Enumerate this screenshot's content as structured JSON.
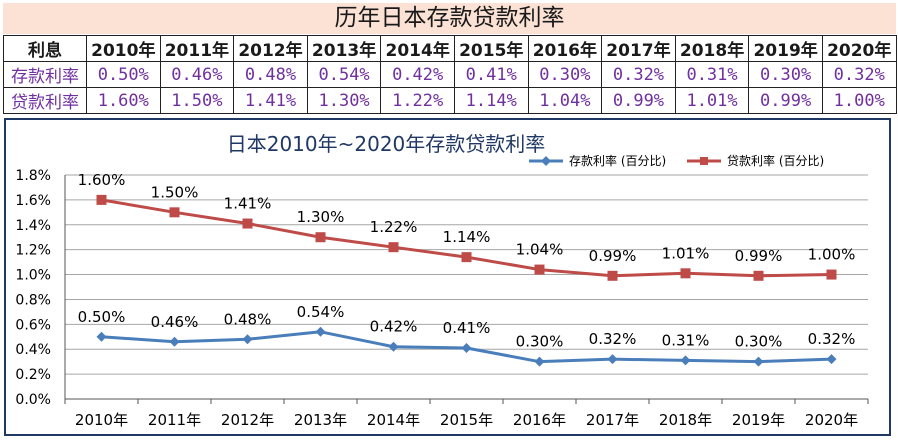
{
  "table": {
    "title": "历年日本存款贷款利率",
    "header_label": "利息",
    "years": [
      "2010年",
      "2011年",
      "2012年",
      "2013年",
      "2014年",
      "2015年",
      "2016年",
      "2017年",
      "2018年",
      "2019年",
      "2020年"
    ],
    "rows": [
      {
        "label": "存款利率",
        "values": [
          "0.50%",
          "0.46%",
          "0.48%",
          "0.54%",
          "0.42%",
          "0.41%",
          "0.30%",
          "0.32%",
          "0.31%",
          "0.30%",
          "0.32%"
        ]
      },
      {
        "label": "贷款利率",
        "values": [
          "1.60%",
          "1.50%",
          "1.41%",
          "1.30%",
          "1.22%",
          "1.14%",
          "1.04%",
          "0.99%",
          "1.01%",
          "0.99%",
          "1.00%"
        ]
      }
    ]
  },
  "chart_data": {
    "type": "line",
    "title": "日本2010年~2020年存款贷款利率",
    "categories": [
      "2010年",
      "2011年",
      "2012年",
      "2013年",
      "2014年",
      "2015年",
      "2016年",
      "2017年",
      "2018年",
      "2019年",
      "2020年"
    ],
    "series": [
      {
        "name": "存款利率 (百分比)",
        "color": "#4a7ebb",
        "marker": "diamond",
        "values": [
          0.5,
          0.46,
          0.48,
          0.54,
          0.42,
          0.41,
          0.3,
          0.32,
          0.31,
          0.3,
          0.32
        ],
        "labels": [
          "0.50%",
          "0.46%",
          "0.48%",
          "0.54%",
          "0.42%",
          "0.41%",
          "0.30%",
          "0.32%",
          "0.31%",
          "0.30%",
          "0.32%"
        ]
      },
      {
        "name": "贷款利率 (百分比)",
        "color": "#be4b48",
        "marker": "square",
        "values": [
          1.6,
          1.5,
          1.41,
          1.3,
          1.22,
          1.14,
          1.04,
          0.99,
          1.01,
          0.99,
          1.0
        ],
        "labels": [
          "1.60%",
          "1.50%",
          "1.41%",
          "1.30%",
          "1.22%",
          "1.14%",
          "1.04%",
          "0.99%",
          "1.01%",
          "0.99%",
          "1.00%"
        ]
      }
    ],
    "ylim": [
      0,
      1.8
    ],
    "yticks": [
      "0.0%",
      "0.2%",
      "0.4%",
      "0.6%",
      "0.8%",
      "1.0%",
      "1.2%",
      "1.4%",
      "1.6%",
      "1.8%"
    ],
    "grid": true,
    "legend": "top-right"
  }
}
